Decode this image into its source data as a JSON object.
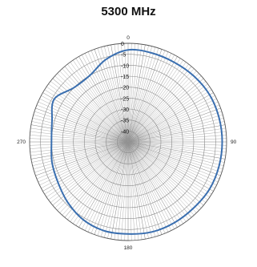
{
  "chart_data": {
    "type": "line",
    "title": "5300 MHz",
    "polar": true,
    "angle_unit": "degrees",
    "angle_ticks": [
      "0",
      "90",
      "180",
      "270"
    ],
    "radial_range": [
      -45,
      0
    ],
    "radial_ticks": [
      "0",
      "-5",
      "-10",
      "-15",
      "-20",
      "-25",
      "-30",
      "-35",
      "-40"
    ],
    "grid": true,
    "series": [
      {
        "color": "#3a6fb0",
        "angles": [
          0,
          15,
          30,
          45,
          60,
          75,
          90,
          105,
          120,
          135,
          150,
          165,
          180,
          195,
          210,
          225,
          240,
          255,
          270,
          285,
          300,
          315,
          330,
          345
        ],
        "values": [
          -3,
          -3,
          -3,
          -2.5,
          -2,
          -2,
          -2,
          -2,
          -2,
          -2.5,
          -2.5,
          -2.5,
          -3,
          -3,
          -4,
          -6,
          -8,
          -9,
          -10,
          -9,
          -6,
          -10,
          -10,
          -6
        ]
      }
    ]
  }
}
